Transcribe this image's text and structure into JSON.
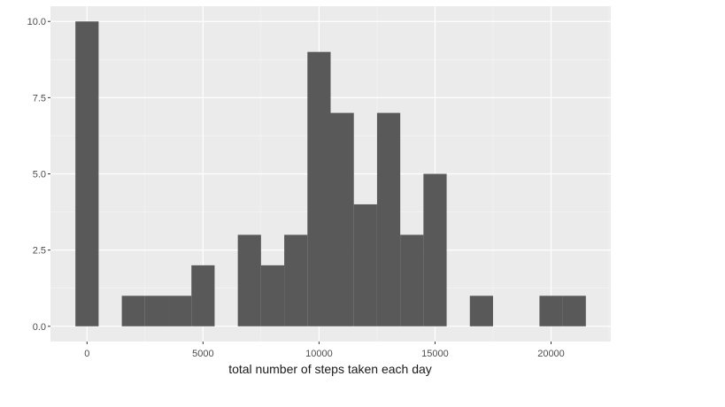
{
  "chart_data": {
    "type": "bar",
    "subtype": "histogram",
    "title": "",
    "xlabel": "total number of steps taken each day",
    "ylabel": "",
    "binwidth": 1000,
    "bins": [
      {
        "x": 0,
        "count": 10
      },
      {
        "x": 1000,
        "count": 0
      },
      {
        "x": 2000,
        "count": 1
      },
      {
        "x": 3000,
        "count": 1
      },
      {
        "x": 4000,
        "count": 1
      },
      {
        "x": 5000,
        "count": 2
      },
      {
        "x": 6000,
        "count": 0
      },
      {
        "x": 7000,
        "count": 3
      },
      {
        "x": 8000,
        "count": 2
      },
      {
        "x": 9000,
        "count": 3
      },
      {
        "x": 10000,
        "count": 9
      },
      {
        "x": 11000,
        "count": 7
      },
      {
        "x": 12000,
        "count": 4
      },
      {
        "x": 13000,
        "count": 7
      },
      {
        "x": 14000,
        "count": 3
      },
      {
        "x": 15000,
        "count": 5
      },
      {
        "x": 16000,
        "count": 0
      },
      {
        "x": 17000,
        "count": 1
      },
      {
        "x": 18000,
        "count": 0
      },
      {
        "x": 19000,
        "count": 0
      },
      {
        "x": 20000,
        "count": 1
      },
      {
        "x": 21000,
        "count": 1
      }
    ],
    "xlim": [
      -1575,
      22575
    ],
    "ylim": [
      -0.5,
      10.5
    ],
    "xticks": [
      0,
      5000,
      10000,
      15000,
      20000
    ],
    "xtick_labels": [
      "0",
      "5000",
      "10000",
      "15000",
      "20000"
    ],
    "yticks": [
      0,
      2.5,
      5,
      7.5,
      10
    ],
    "ytick_labels": [
      "0.0",
      "2.5",
      "5.0",
      "7.5",
      "10.0"
    ],
    "grid": true,
    "legend": "none",
    "colors": {
      "panel_background": "#ebebeb",
      "grid_major": "#ffffff",
      "grid_minor": "#f5f5f5",
      "bar_fill": "#595959",
      "tick": "#333333"
    }
  }
}
